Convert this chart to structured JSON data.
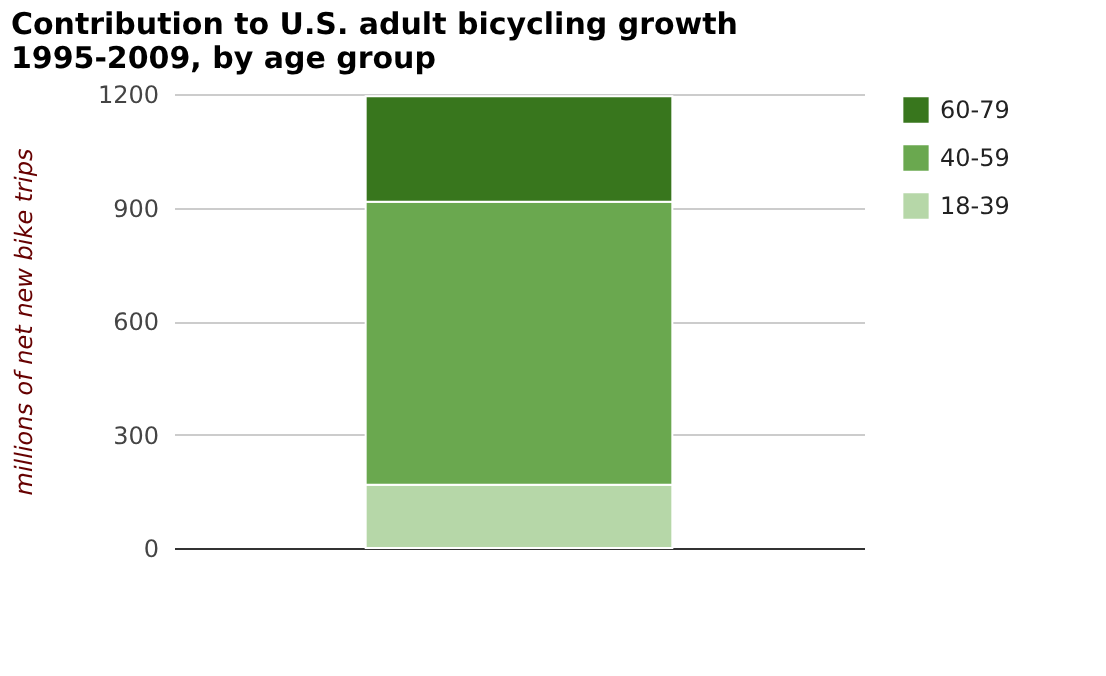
{
  "chart_data": {
    "type": "bar",
    "title": [
      "Contribution to U.S. adult bicycling growth",
      "1995-2009, by age group"
    ],
    "ylabel": "millions of net new bike trips",
    "categories": [
      null
    ],
    "stacked": true,
    "series": [
      {
        "name": "18-39",
        "color": "#b6d7a8",
        "values": [
          167
        ]
      },
      {
        "name": "40-59",
        "color": "#6aa84f",
        "values": [
          748
        ]
      },
      {
        "name": "60-79",
        "color": "#38761d",
        "values": [
          279
        ]
      }
    ],
    "ylim": [
      0,
      1200
    ],
    "yticks": [
      0,
      300,
      600,
      900,
      1200
    ],
    "grid": "y",
    "legend": "top right"
  }
}
